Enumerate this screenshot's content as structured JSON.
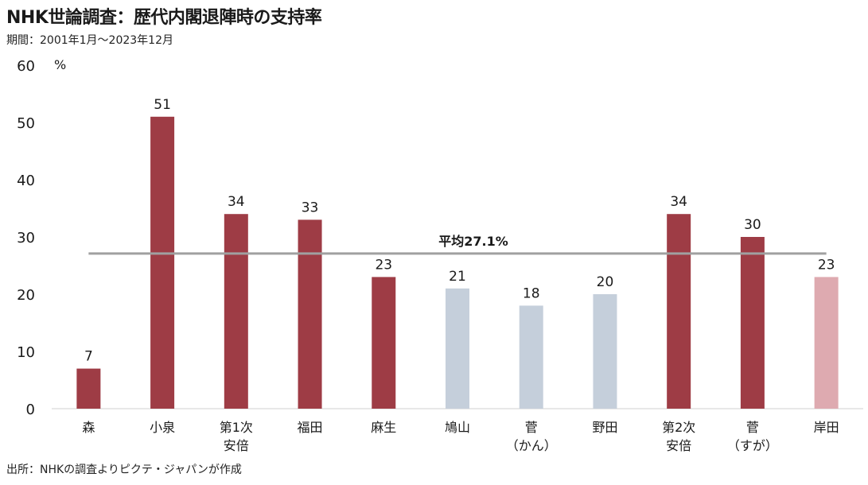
{
  "title": "NHK世論調査：歴代内閣退陣時の支持率",
  "period": "期間：2001年1月～2023年12月",
  "source": "出所：NHKの調査よりピクテ・ジャパンが作成",
  "chart_data": {
    "type": "bar",
    "title": "NHK世論調査：歴代内閣退陣時の支持率",
    "ylabel": "%",
    "ylim": [
      0,
      60
    ],
    "yticks": [
      0,
      10,
      20,
      30,
      40,
      50,
      60
    ],
    "categories": [
      [
        "森"
      ],
      [
        "小泉"
      ],
      [
        "第1次",
        "安倍"
      ],
      [
        "福田"
      ],
      [
        "麻生"
      ],
      [
        "鳩山"
      ],
      [
        "菅",
        "（かん）"
      ],
      [
        "野田"
      ],
      [
        "第2次",
        "安倍"
      ],
      [
        "菅",
        "（すが）"
      ],
      [
        "岸田"
      ]
    ],
    "values": [
      7,
      51,
      34,
      33,
      23,
      21,
      18,
      20,
      34,
      30,
      23
    ],
    "colors": [
      "#9e3c45",
      "#9e3c45",
      "#9e3c45",
      "#9e3c45",
      "#9e3c45",
      "#c5cfdb",
      "#c5cfdb",
      "#c5cfdb",
      "#9e3c45",
      "#9e3c45",
      "#deaab0"
    ],
    "average": {
      "value": 27.1,
      "label": "平均27.1%",
      "color": "#a0a0a0"
    },
    "grid": false,
    "legend": "none"
  }
}
